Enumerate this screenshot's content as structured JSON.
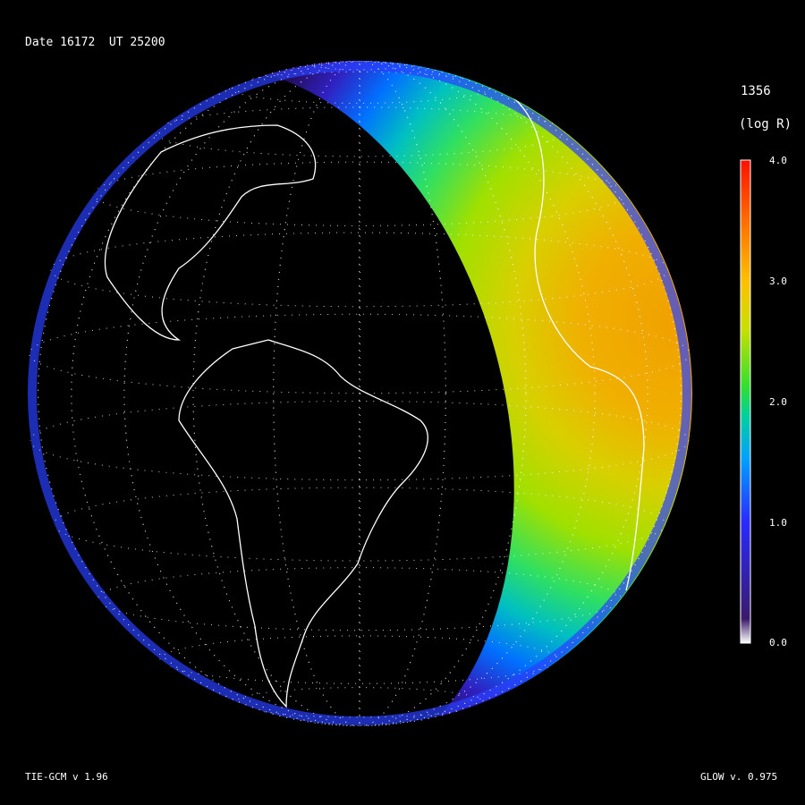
{
  "header": {
    "date_label": "Date 16172  UT 25200"
  },
  "colorbar": {
    "title": "1356",
    "units": "(log R)",
    "ticks": [
      "4.0",
      "3.0",
      "2.0",
      "1.0",
      "0.0"
    ],
    "range": [
      0.0,
      4.0
    ],
    "colors": [
      "#ffffff",
      "#3a1a6a",
      "#2a2aff",
      "#00a0ff",
      "#00d0a0",
      "#30e030",
      "#c8e000",
      "#ffc000",
      "#ff7000",
      "#ff1000"
    ]
  },
  "footer": {
    "left": "TIE-GCM v 1.96",
    "right": "GLOW v. 0.975"
  }
}
